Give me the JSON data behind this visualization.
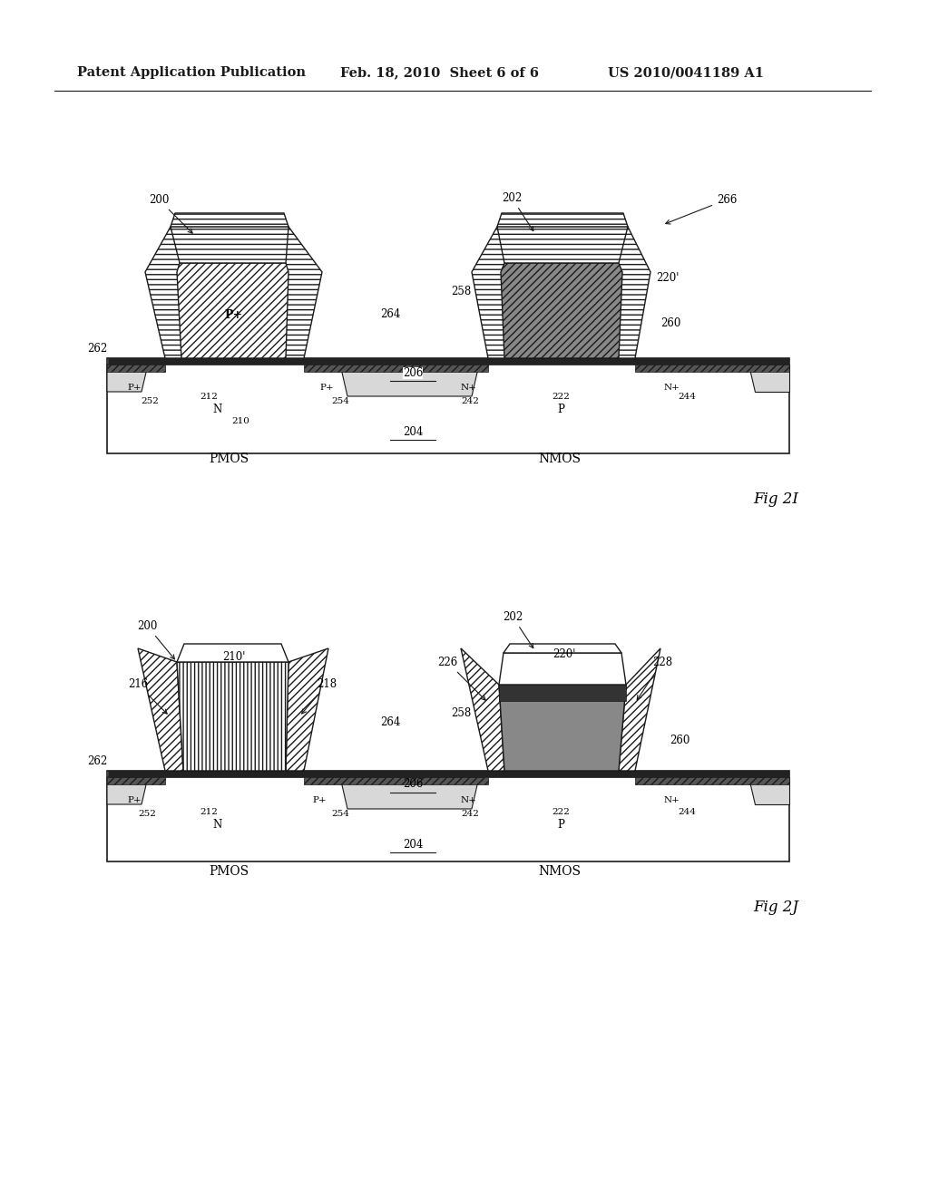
{
  "header_left": "Patent Application Publication",
  "header_mid": "Feb. 18, 2010  Sheet 6 of 6",
  "header_right": "US 2010/0041189 A1",
  "fig1_label": "Fig 2I",
  "fig2_label": "Fig 2J",
  "bg_color": "#ffffff",
  "line_color": "#1a1a1a",
  "pmos_label": "PMOS",
  "nmos_label": "NMOS"
}
